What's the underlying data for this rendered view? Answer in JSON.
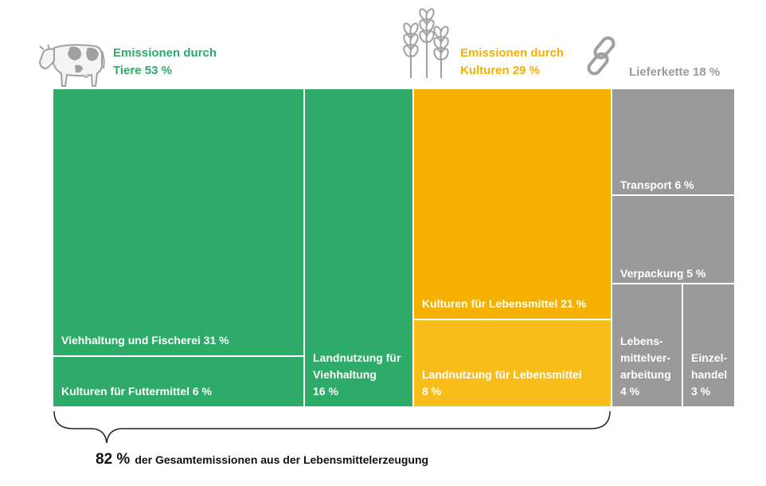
{
  "colors": {
    "animals": "#2eab69",
    "crops": "#f5b000",
    "crops_light": "#f8bd1b",
    "supply": "#9a9a9a",
    "icon_gray": "#a0a0a0",
    "text_dark": "#111111"
  },
  "icons": {
    "animals": "cow-icon",
    "crops": "wheat-icon",
    "supply": "chain-link-icon"
  },
  "groups": {
    "animals": {
      "lines": [
        "Emissionen durch",
        "Tiere 53 %"
      ],
      "percent": 53
    },
    "crops": {
      "lines": [
        "Emissionen durch",
        "Kulturen 29 %"
      ],
      "percent": 29
    },
    "supply": {
      "lines": [
        "Lieferkette 18 %"
      ],
      "percent": 18
    }
  },
  "footer": {
    "big": "82 %",
    "text": "der Gesamtemissionen aus der Lebensmittelerzeugung"
  },
  "chart_data": {
    "type": "treemap",
    "total_label": "82 % der Gesamtemissionen aus der Lebensmittelerzeugung",
    "groups": [
      {
        "name": "Emissionen durch Tiere",
        "value": 53,
        "items": [
          {
            "lines": [
              "Viehhaltung und Fischerei 31 %"
            ],
            "value": 31
          },
          {
            "lines": [
              "Kulturen für Futtermittel 6 %"
            ],
            "value": 6
          },
          {
            "lines": [
              "Landnutzung für",
              "Viehhaltung",
              "16 %"
            ],
            "value": 16
          }
        ]
      },
      {
        "name": "Emissionen durch Kulturen",
        "value": 29,
        "items": [
          {
            "lines": [
              "Kulturen für Lebensmittel 21 %"
            ],
            "value": 21
          },
          {
            "lines": [
              "Landnutzung für Lebensmittel",
              "8 %"
            ],
            "value": 8
          }
        ]
      },
      {
        "name": "Lieferkette",
        "value": 18,
        "items": [
          {
            "lines": [
              "Transport 6 %"
            ],
            "value": 6
          },
          {
            "lines": [
              "Verpackung 5 %"
            ],
            "value": 5
          },
          {
            "lines": [
              "Lebens-",
              "mittelver-",
              "arbeitung",
              "4 %"
            ],
            "value": 4
          },
          {
            "lines": [
              "Einzel-",
              "handel",
              "3 %"
            ],
            "value": 3
          }
        ]
      }
    ]
  }
}
